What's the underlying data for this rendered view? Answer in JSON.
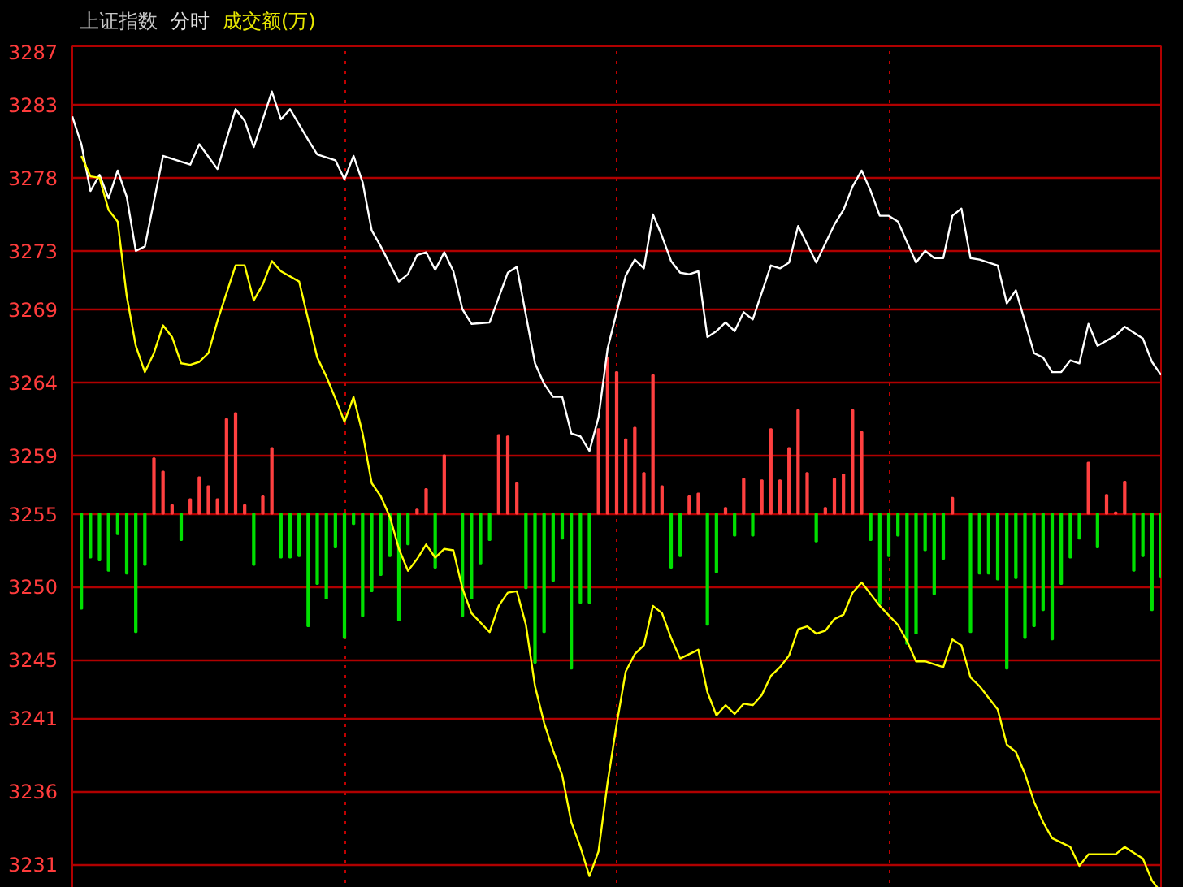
{
  "chart_data": {
    "type": "line",
    "title": "上证指数",
    "annotations": [
      "分时",
      "成交额(万)"
    ],
    "categories": [
      null,
      null,
      null,
      null,
      null,
      null,
      null,
      null,
      null,
      null,
      null,
      null,
      null,
      null,
      null,
      null,
      null,
      null,
      null,
      null,
      null,
      null,
      null,
      null,
      null,
      null,
      null,
      null,
      null,
      null,
      null,
      null,
      null,
      null,
      null,
      null,
      null,
      null,
      null,
      null,
      null,
      null,
      null,
      null,
      null,
      null,
      null,
      null,
      null,
      null,
      null,
      null,
      null,
      null,
      null,
      null,
      null,
      null,
      null,
      null,
      null,
      null,
      null,
      null,
      null,
      null,
      null,
      null,
      null,
      null,
      null,
      null,
      null,
      null,
      null,
      null,
      null,
      null,
      null,
      null,
      null,
      null,
      null,
      null,
      null,
      null,
      null,
      null,
      null,
      null,
      null,
      null,
      null,
      null,
      null,
      null,
      null,
      null,
      null,
      null,
      null,
      null,
      null,
      null,
      null,
      null,
      null,
      null,
      null,
      null,
      null,
      null,
      null,
      null,
      null,
      null,
      null,
      null,
      null,
      null,
      null
    ],
    "ylim": [
      3228.4,
      3287
    ],
    "yticks": [
      3231,
      3236,
      3241,
      3245,
      3250,
      3255,
      3259,
      3264,
      3269,
      3273,
      3278,
      3283,
      3287
    ],
    "tick_labels": "y",
    "grid": true,
    "series": [
      {
        "type": "bar",
        "color": "#ff4040",
        "values": [
          null,
          null,
          null,
          null,
          null,
          null,
          null,
          null,
          null,
          3.8,
          2.9,
          0.6,
          null,
          1.0,
          2.5,
          1.9,
          1.0,
          6.5,
          6.9,
          0.6,
          null,
          1.2,
          4.5,
          null,
          null,
          null,
          null,
          null,
          null,
          null,
          null,
          null,
          null,
          null,
          null,
          null,
          null,
          null,
          0.3,
          1.7,
          null,
          4.0,
          null,
          null,
          null,
          null,
          null,
          5.4,
          5.3,
          2.1,
          null,
          null,
          null,
          null,
          null,
          null,
          null,
          null,
          5.8,
          10.7,
          9.7,
          5.1,
          5.9,
          2.8,
          9.5,
          1.9,
          null,
          null,
          1.2,
          1.4,
          null,
          null,
          0.4,
          null,
          2.4,
          null,
          2.3,
          5.8,
          2.3,
          4.5,
          7.1,
          2.8,
          null,
          0.4,
          2.4,
          2.7,
          7.1,
          5.6,
          null,
          null,
          null,
          null,
          null,
          null,
          null,
          null,
          null,
          1.1,
          null,
          null,
          null,
          null,
          null,
          null,
          null,
          null,
          null,
          null,
          null,
          null,
          null,
          null,
          3.5,
          null,
          1.3,
          0.1,
          2.2,
          null,
          null,
          null,
          null
        ],
        "base": [
          null,
          null,
          null,
          null,
          null,
          null,
          null,
          null,
          null,
          3255,
          3255,
          3255,
          null,
          3255,
          3255,
          3255,
          3255,
          3255,
          3255,
          3255,
          null,
          3255,
          3255,
          null,
          null,
          null,
          null,
          null,
          null,
          null,
          null,
          null,
          null,
          null,
          null,
          null,
          null,
          null,
          3255,
          3255,
          null,
          3255,
          null,
          null,
          null,
          null,
          null,
          3255,
          3255,
          3255,
          null,
          null,
          null,
          null,
          null,
          null,
          null,
          null,
          3255,
          3255,
          3255,
          3255,
          3255,
          3255,
          3255,
          3255,
          null,
          null,
          3255,
          3255,
          null,
          null,
          3255,
          null,
          3255,
          null,
          3255,
          3255,
          3255,
          3255,
          3255,
          3255,
          null,
          3255,
          3255,
          3255,
          3255,
          3255,
          null,
          null,
          null,
          null,
          null,
          null,
          null,
          null,
          null,
          3255,
          null,
          null,
          null,
          null,
          null,
          null,
          null,
          null,
          null,
          null,
          null,
          null,
          null,
          null,
          3255,
          null,
          3255,
          3255,
          3255,
          null,
          null,
          null,
          null
        ]
      },
      {
        "type": "bar",
        "color": "#00e000",
        "values": [
          null,
          -6.5,
          -3.0,
          -3.2,
          -3.9,
          -1.4,
          -4.1,
          -8.1,
          -3.5,
          null,
          null,
          null,
          -1.8,
          null,
          null,
          null,
          null,
          null,
          null,
          null,
          -3.5,
          null,
          null,
          -3.0,
          -3.0,
          -2.9,
          -7.7,
          -4.8,
          -5.8,
          -2.3,
          -8.5,
          -0.7,
          -7.0,
          -5.3,
          -4.2,
          -2.9,
          -7.3,
          -2.1,
          null,
          null,
          -3.7,
          null,
          null,
          -7.0,
          -5.8,
          -3.4,
          -1.8,
          null,
          null,
          null,
          -5.1,
          -10.2,
          -8.1,
          -4.6,
          -1.7,
          -10.6,
          -6.1,
          -6.1,
          null,
          null,
          null,
          null,
          null,
          null,
          null,
          null,
          -3.7,
          -2.9,
          null,
          null,
          -7.6,
          -4.0,
          null,
          -1.5,
          null,
          -1.5,
          null,
          null,
          null,
          null,
          null,
          null,
          -1.9,
          null,
          null,
          null,
          null,
          null,
          -1.8,
          -6.2,
          -2.9,
          -1.5,
          -8.9,
          -8.2,
          -2.5,
          -5.5,
          -3.1,
          null,
          null,
          -8.1,
          -4.1,
          -4.1,
          -4.5,
          -10.6,
          -4.4,
          -8.5,
          -7.7,
          -6.6,
          -8.6,
          -4.8,
          -3.0,
          -1.7,
          null,
          -2.3,
          null,
          null,
          null,
          -3.9,
          -2.9,
          -6.6,
          -4.3
        ],
        "base": [
          null,
          3255,
          3255,
          3255,
          3255,
          3255,
          3255,
          3255,
          3255,
          null,
          null,
          null,
          3255,
          null,
          null,
          null,
          null,
          null,
          null,
          null,
          3255,
          null,
          null,
          3255,
          3255,
          3255,
          3255,
          3255,
          3255,
          3255,
          3255,
          3255,
          3255,
          3255,
          3255,
          3255,
          3255,
          3255,
          null,
          null,
          3255,
          null,
          null,
          3255,
          3255,
          3255,
          3255,
          null,
          null,
          null,
          3255,
          3255,
          3255,
          3255,
          3255,
          3255,
          3255,
          3255,
          null,
          null,
          null,
          null,
          null,
          null,
          null,
          null,
          3255,
          3255,
          null,
          null,
          3255,
          3255,
          null,
          3255,
          null,
          3255,
          null,
          null,
          null,
          null,
          null,
          null,
          3255,
          null,
          null,
          null,
          null,
          null,
          3255,
          3255,
          3255,
          3255,
          3255,
          3255,
          3255,
          3255,
          3255,
          null,
          null,
          3255,
          3255,
          3255,
          3255,
          3255,
          3255,
          3255,
          3255,
          3255,
          3255,
          3255,
          3255,
          3255,
          null,
          3255,
          null,
          null,
          null,
          3255,
          3255,
          3255,
          3255
        ]
      },
      {
        "color": "#ffffff",
        "values": [
          3282.2,
          3280.3,
          3277.1,
          3278.2,
          3276.6,
          3278.5,
          3276.7,
          3273.0,
          3273.3,
          null,
          3279.5,
          null,
          null,
          3278.9,
          3280.3,
          null,
          3278.6,
          null,
          3282.7,
          3281.9,
          3280.1,
          null,
          3283.9,
          3282.0,
          3282.7,
          null,
          3280.6,
          3279.6,
          null,
          3279.2,
          3277.9,
          3279.5,
          3277.7,
          3274.4,
          3273.3,
          null,
          3270.9,
          3271.4,
          3272.7,
          3272.9,
          3271.7,
          3272.9,
          3271.6,
          3269.0,
          3268.0,
          null,
          3268.1,
          null,
          3271.5,
          3271.9,
          null,
          3265.3,
          3263.9,
          3263.0,
          3263.0,
          3260.5,
          3260.3,
          3259.3,
          3261.6,
          3266.3,
          3268.8,
          3271.3,
          3272.4,
          3271.8,
          3275.5,
          3274.0,
          3272.3,
          3271.5,
          3271.4,
          3271.6,
          3267.1,
          3267.5,
          3268.1,
          3267.5,
          3268.8,
          3268.3,
          null,
          3272.0,
          3271.8,
          3272.2,
          3274.7,
          null,
          3272.2,
          null,
          3274.8,
          3275.8,
          3277.4,
          3278.5,
          3277.1,
          3275.4,
          3275.4,
          3275.0,
          null,
          3272.2,
          3273.0,
          3272.5,
          3272.5,
          3275.4,
          3275.9,
          3272.5,
          3272.4,
          null,
          3272.0,
          3269.4,
          3270.3,
          null,
          3266.0,
          3265.7,
          3264.7,
          3264.7,
          3265.5,
          3265.3,
          3268.0,
          3266.5,
          null,
          3267.2,
          3267.8,
          null,
          3267.0,
          3265.4,
          3264.5
        ]
      },
      {
        "color": "#ffff00",
        "values": [
          null,
          3279.5,
          3278.1,
          3278.0,
          3275.8,
          3275.0,
          3269.9,
          3266.5,
          3264.7,
          3266.0,
          3267.9,
          3267.1,
          3265.3,
          3265.2,
          3265.4,
          3266.0,
          3268.2,
          null,
          3272.0,
          3272.0,
          3269.6,
          3270.7,
          3272.3,
          3271.6,
          null,
          3270.9,
          null,
          3265.7,
          3264.4,
          3262.9,
          3261.3,
          3263.0,
          3260.5,
          3257.1,
          3256.2,
          3254.8,
          3252.6,
          3251.1,
          3251.9,
          3252.9,
          3252.0,
          3252.6,
          3252.5,
          3249.9,
          3248.2,
          null,
          3246.9,
          3248.7,
          3249.6,
          3249.7,
          3247.4,
          3243.2,
          3240.7,
          3238.8,
          3237.1,
          3233.9,
          3232.2,
          3230.2,
          3231.9,
          3236.6,
          3240.6,
          3244.2,
          3245.4,
          3246.0,
          3248.7,
          3248.2,
          3246.5,
          3245.1,
          null,
          3245.7,
          3242.8,
          3241.2,
          3241.9,
          3241.3,
          3242.0,
          3241.9,
          3242.6,
          3243.9,
          3244.5,
          3245.3,
          3247.1,
          3247.3,
          3246.8,
          3247.0,
          3247.8,
          3248.1,
          3249.6,
          3250.3,
          null,
          3248.7,
          null,
          3247.4,
          3246.3,
          3244.9,
          3244.9,
          null,
          3244.5,
          3246.4,
          3246.0,
          3243.8,
          3243.2,
          null,
          3241.6,
          3239.2,
          3238.7,
          3237.2,
          3235.3,
          3233.9,
          3232.8,
          null,
          3232.2,
          3230.9,
          3231.7,
          null,
          null,
          3231.7,
          3232.2,
          null,
          3231.4,
          3229.9,
          3229.1
        ]
      }
    ]
  }
}
